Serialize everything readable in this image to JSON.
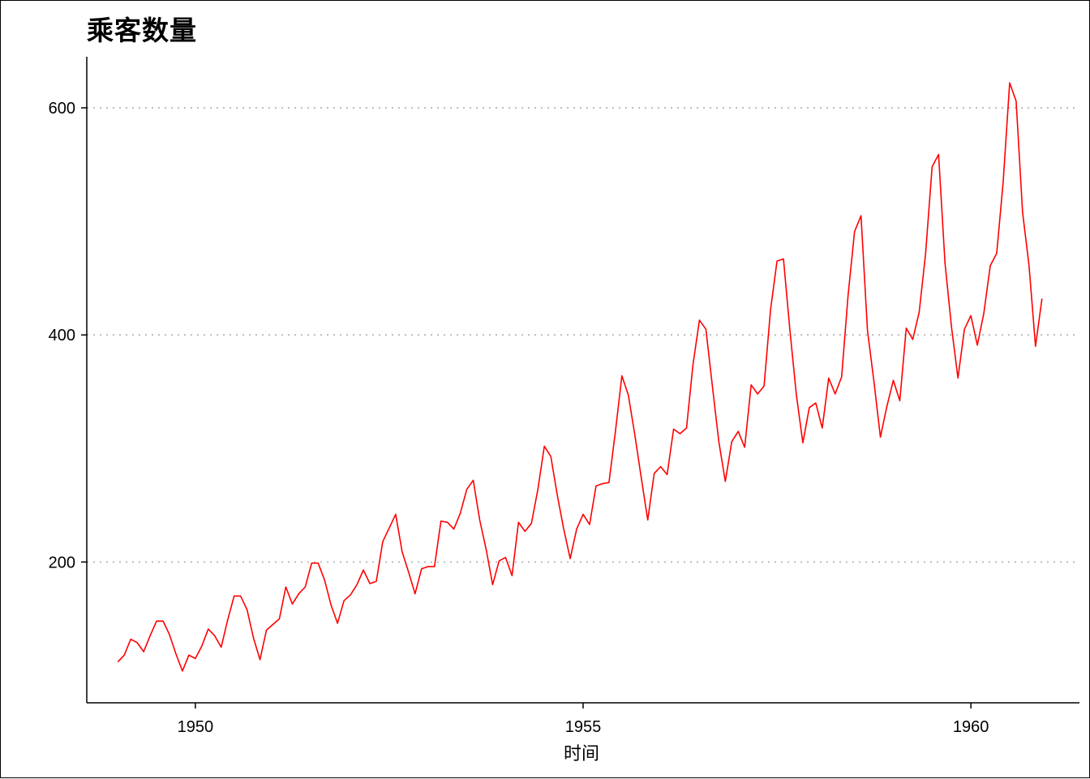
{
  "chart_data": {
    "type": "line",
    "title": "乘客数量",
    "xlabel": "时间",
    "ylabel": "",
    "x_ticks": [
      1950,
      1955,
      1960
    ],
    "y_ticks": [
      200,
      400,
      600
    ],
    "xlim": [
      1948.6,
      1961.4
    ],
    "ylim": [
      76,
      645
    ],
    "grid": "horizontal dotted",
    "line_color": "#ff0000",
    "grid_color": "#bdbdbd",
    "x_start": 1949.0,
    "x_step": 0.0833333,
    "values": [
      112,
      118,
      132,
      129,
      121,
      135,
      148,
      148,
      136,
      119,
      104,
      118,
      115,
      126,
      141,
      135,
      125,
      149,
      170,
      170,
      158,
      133,
      114,
      140,
      145,
      150,
      178,
      163,
      172,
      178,
      199,
      199,
      184,
      162,
      146,
      166,
      171,
      180,
      193,
      181,
      183,
      218,
      230,
      242,
      209,
      191,
      172,
      194,
      196,
      196,
      236,
      235,
      229,
      243,
      264,
      272,
      237,
      211,
      180,
      201,
      204,
      188,
      235,
      227,
      234,
      264,
      302,
      293,
      259,
      229,
      203,
      229,
      242,
      233,
      267,
      269,
      270,
      315,
      364,
      347,
      312,
      274,
      237,
      278,
      284,
      277,
      317,
      313,
      318,
      374,
      413,
      405,
      355,
      306,
      271,
      306,
      315,
      301,
      356,
      348,
      355,
      422,
      465,
      467,
      404,
      347,
      305,
      336,
      340,
      318,
      362,
      348,
      363,
      435,
      491,
      505,
      404,
      359,
      310,
      337,
      360,
      342,
      406,
      396,
      420,
      472,
      548,
      559,
      463,
      407,
      362,
      405,
      417,
      391,
      419,
      461,
      472,
      535,
      622,
      606,
      508,
      461,
      390,
      432
    ]
  }
}
